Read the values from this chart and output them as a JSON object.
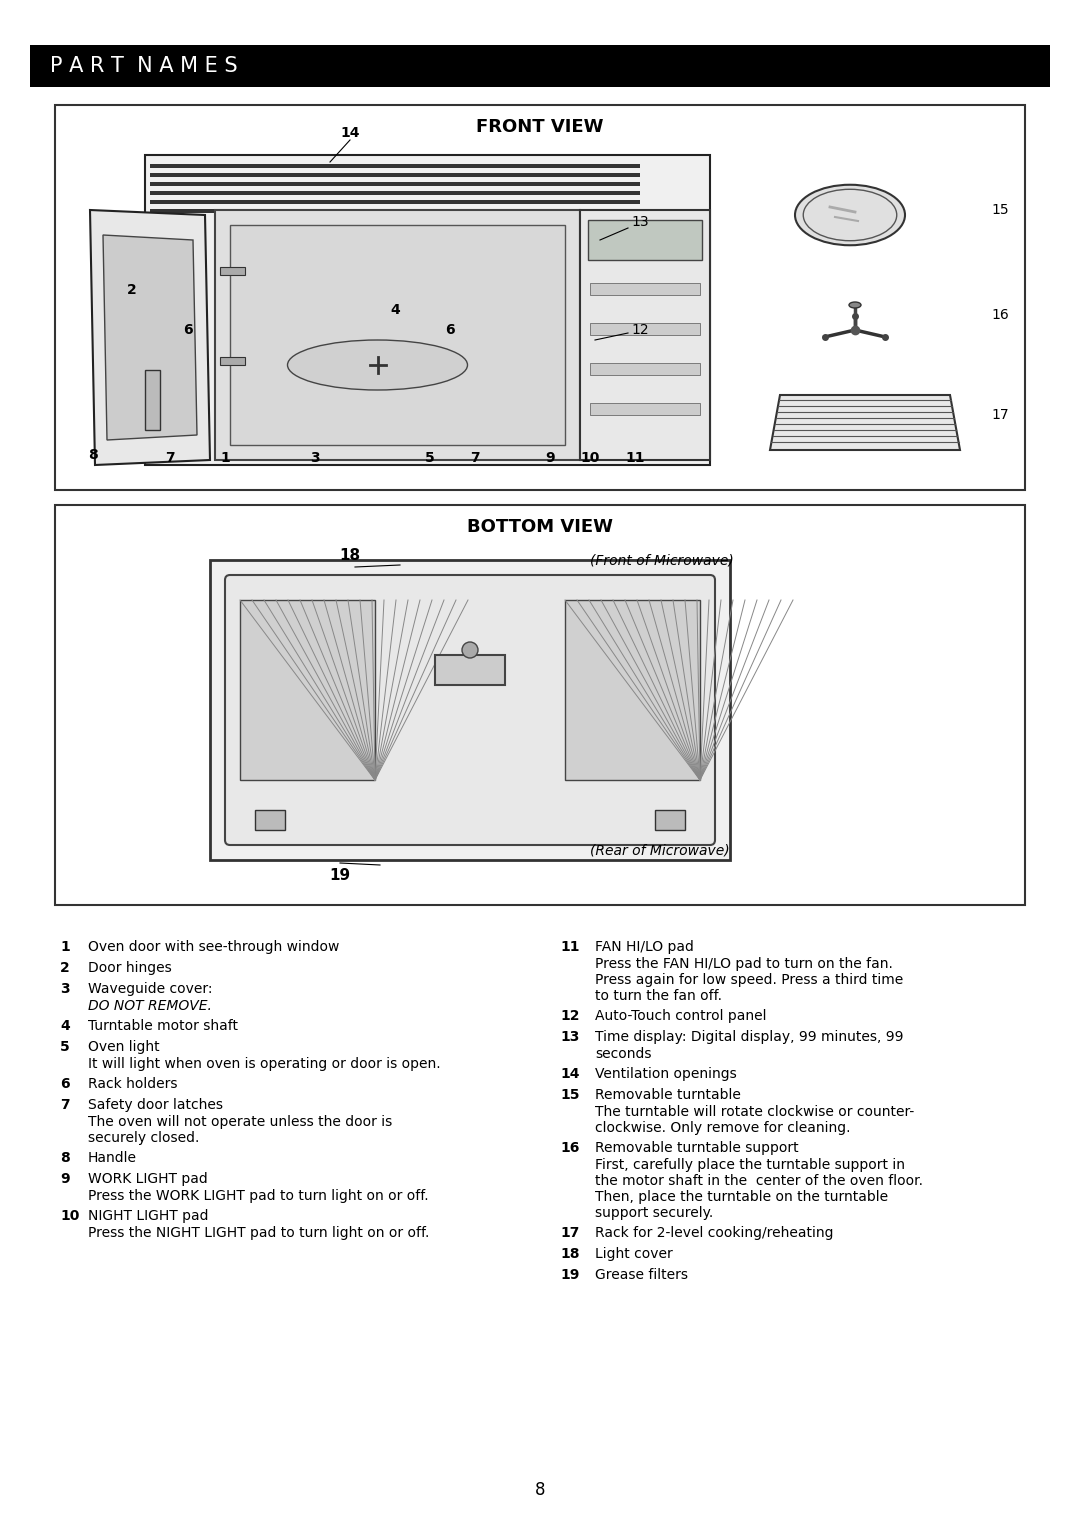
{
  "page_bg": "#ffffff",
  "header_bg": "#000000",
  "header_text": "P A R T  N A M E S",
  "header_text_color": "#ffffff",
  "front_view_title": "FRONT VIEW",
  "bottom_view_title": "BOTTOM VIEW",
  "parts_list_left": [
    {
      "num": "1",
      "text": "Oven door with see-through window"
    },
    {
      "num": "2",
      "text": "Door hinges"
    },
    {
      "num": "3",
      "text": "Waveguide cover:\nDO NOT REMOVE."
    },
    {
      "num": "4",
      "text": "Turntable motor shaft"
    },
    {
      "num": "5",
      "text": "Oven light\nIt will light when oven is operating or door is open."
    },
    {
      "num": "6",
      "text": "Rack holders"
    },
    {
      "num": "7",
      "text": "Safety door latches\nThe oven will not operate unless the door is\nsecurely closed."
    },
    {
      "num": "8",
      "text": "Handle"
    },
    {
      "num": "9",
      "text": "WORK LIGHT pad\nPress the WORK LIGHT pad to turn light on or off."
    },
    {
      "num": "10",
      "text": "NIGHT LIGHT pad\nPress the NIGHT LIGHT pad to turn light on or off."
    }
  ],
  "parts_list_right": [
    {
      "num": "11",
      "text": "FAN HI/LO pad\nPress the FAN HI/LO pad to turn on the fan.\nPress again for low speed. Press a third time\nto turn the fan off."
    },
    {
      "num": "12",
      "text": "Auto-Touch control panel"
    },
    {
      "num": "13",
      "text": "Time display: Digital display, 99 minutes, 99\nseconds"
    },
    {
      "num": "14",
      "text": "Ventilation openings"
    },
    {
      "num": "15",
      "text": "Removable turntable\nThe turntable will rotate clockwise or counter-\nclockwise. Only remove for cleaning."
    },
    {
      "num": "16",
      "text": "Removable turntable support\nFirst, carefully place the turntable support in\nthe motor shaft in the  center of the oven floor.\nThen, place the turntable on the turntable\nsupport securely."
    },
    {
      "num": "17",
      "text": "Rack for 2-level cooking/reheating"
    },
    {
      "num": "18",
      "text": "Light cover"
    },
    {
      "num": "19",
      "text": "Grease filters"
    }
  ],
  "page_number": "8"
}
